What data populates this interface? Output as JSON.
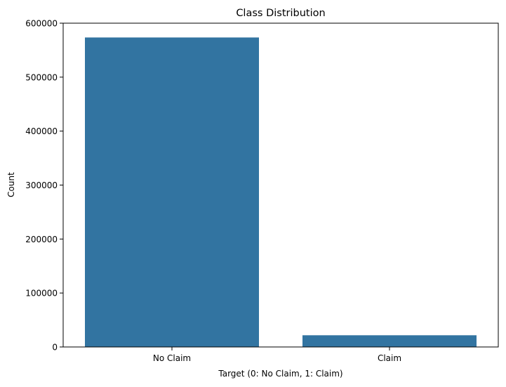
{
  "chart_data": {
    "type": "bar",
    "title": "Class Distribution",
    "xlabel": "Target (0: No Claim, 1: Claim)",
    "ylabel": "Count",
    "categories": [
      "No Claim",
      "Claim"
    ],
    "values": [
      573500,
      21700
    ],
    "ylim": [
      0,
      600000
    ],
    "yticks": [
      0,
      100000,
      200000,
      300000,
      400000,
      500000,
      600000
    ],
    "ytick_labels": [
      "0",
      "100000",
      "200000",
      "300000",
      "400000",
      "500000",
      "600000"
    ],
    "grid": false,
    "legend": "none",
    "bar_color": "#3274a1"
  }
}
